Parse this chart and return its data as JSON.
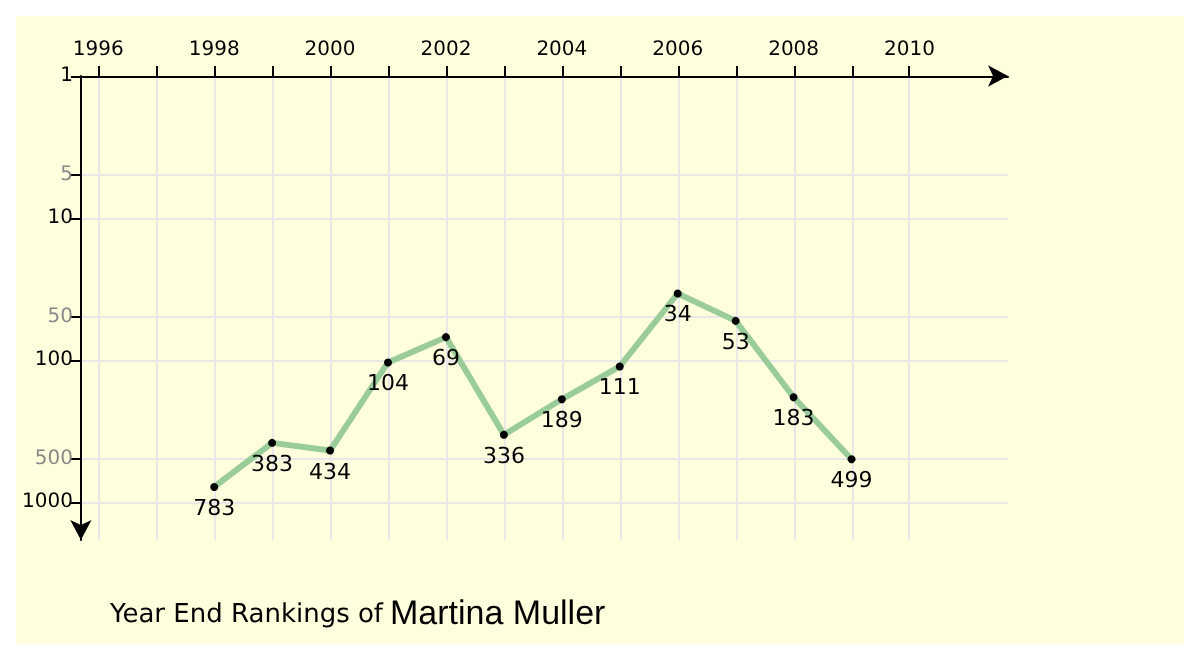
{
  "chart_data": {
    "type": "line",
    "title": "Year End Rankings of",
    "subtitle": "Martina Muller",
    "x": [
      1998,
      1999,
      2000,
      2001,
      2002,
      2003,
      2004,
      2005,
      2006,
      2007,
      2008,
      2009
    ],
    "series": [
      {
        "color": "#99cc99",
        "values": [
          783,
          383,
          434,
          104,
          69,
          336,
          189,
          111,
          34,
          53,
          183,
          499
        ]
      }
    ],
    "xlim": [
      1995.7,
      2011.7
    ],
    "xticks": [
      1996,
      {
        "value": 1997,
        "label": null
      },
      1998,
      {
        "value": 1999,
        "label": null
      },
      2000,
      {
        "value": 2001,
        "label": null
      },
      2002,
      {
        "value": 2003,
        "label": null
      },
      2004,
      {
        "value": 2005,
        "label": null
      },
      2006,
      {
        "value": 2007,
        "label": null
      },
      2008,
      {
        "value": 2009,
        "label": null
      },
      2010
    ],
    "ylim": [
      1850,
      1
    ],
    "yticks": [
      1,
      5,
      10,
      50,
      100,
      500,
      1000
    ],
    "log": "y",
    "grid": true,
    "marker": "circle",
    "line_style": "solid",
    "data_labels": true
  }
}
